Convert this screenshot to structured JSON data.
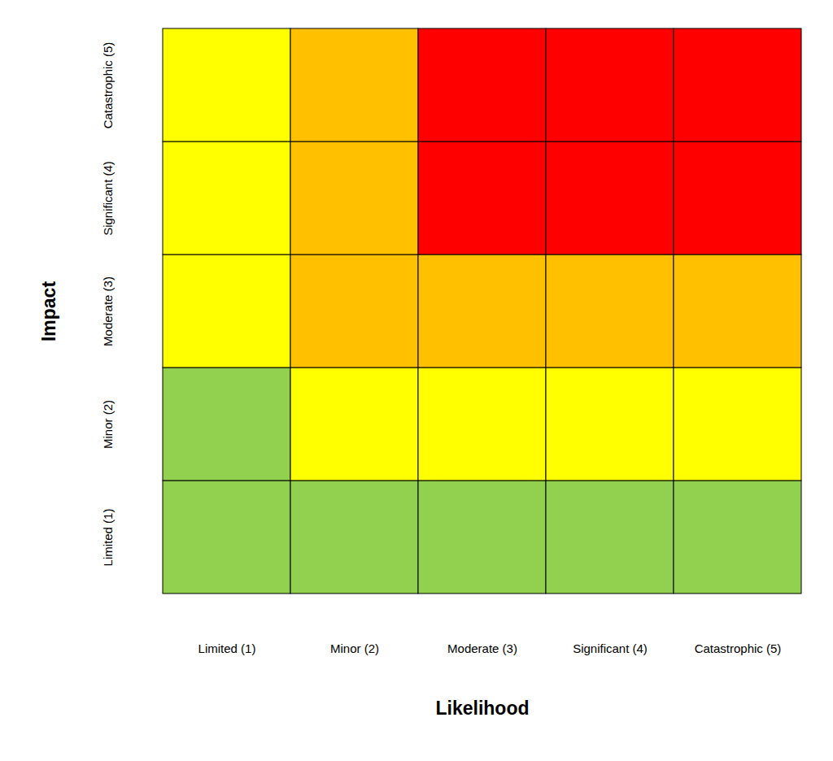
{
  "chart_data": {
    "type": "heatmap",
    "x_label": "Likelihood",
    "y_label": "Impact",
    "categories": [
      "Limited (1)",
      "Minor (2)",
      "Moderate (3)",
      "Significant (4)",
      "Catastrophic (5)"
    ],
    "y_categories": [
      "Limited (1)",
      "Minor (2)",
      "Moderate (3)",
      "Significant (4)",
      "Catastrophic (5)"
    ],
    "colors": [
      [
        "#92d050",
        "#92d050",
        "#92d050",
        "#92d050",
        "#92d050"
      ],
      [
        "#92d050",
        "#ffff00",
        "#ffff00",
        "#ffff00",
        "#ffff00"
      ],
      [
        "#ffff00",
        "#ffc000",
        "#ffc000",
        "#ffc000",
        "#ffc000"
      ],
      [
        "#ffff00",
        "#ffc000",
        "#ff0000",
        "#ff0000",
        "#ff0000"
      ],
      [
        "#ffff00",
        "#ffc000",
        "#ff0000",
        "#ff0000",
        "#ff0000"
      ]
    ]
  }
}
